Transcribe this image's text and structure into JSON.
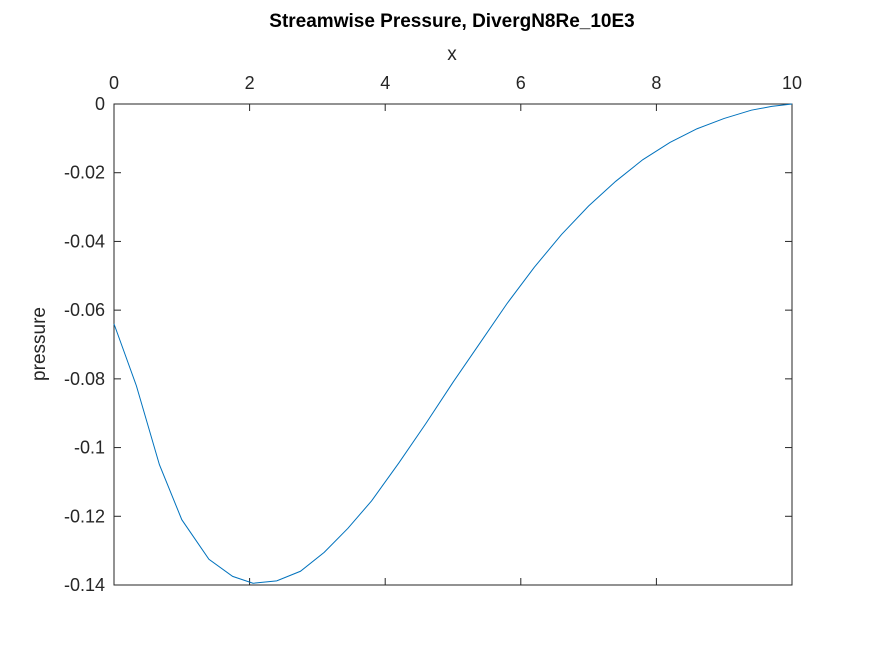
{
  "chart_data": {
    "type": "line",
    "title": "Streamwise Pressure, DivergN8Re_10E3",
    "xlabel": "x",
    "ylabel": "pressure",
    "xlim": [
      0,
      10
    ],
    "ylim": [
      -0.14,
      0
    ],
    "x_axis_position": "top",
    "y_direction": "reversed",
    "grid": false,
    "x_ticks": [
      0,
      2,
      4,
      6,
      8,
      10
    ],
    "y_ticks": [
      0,
      -0.02,
      -0.04,
      -0.06,
      -0.08,
      -0.1,
      -0.12,
      -0.14
    ],
    "x_tick_labels": [
      "0",
      "2",
      "4",
      "6",
      "8",
      "10"
    ],
    "y_tick_labels": [
      "0",
      "-0.02",
      "-0.04",
      "-0.06",
      "-0.08",
      "-0.1",
      "-0.12",
      "-0.14"
    ],
    "line_color": "#0072BD",
    "series": [
      {
        "x": [
          0,
          0.33,
          0.67,
          1.0,
          1.4,
          1.75,
          2.05,
          2.4,
          2.75,
          3.1,
          3.45,
          3.8,
          4.2,
          4.6,
          5.0,
          5.4,
          5.8,
          6.2,
          6.6,
          7.0,
          7.4,
          7.8,
          8.2,
          8.6,
          9.0,
          9.4,
          9.7,
          10.0
        ],
        "values": [
          -0.064,
          -0.082,
          -0.105,
          -0.121,
          -0.1325,
          -0.1375,
          -0.1395,
          -0.1388,
          -0.136,
          -0.1305,
          -0.1235,
          -0.1155,
          -0.1045,
          -0.093,
          -0.081,
          -0.0695,
          -0.058,
          -0.0475,
          -0.038,
          -0.0297,
          -0.0225,
          -0.0162,
          -0.0112,
          -0.0072,
          -0.0042,
          -0.0018,
          -0.0007,
          0
        ]
      }
    ]
  }
}
